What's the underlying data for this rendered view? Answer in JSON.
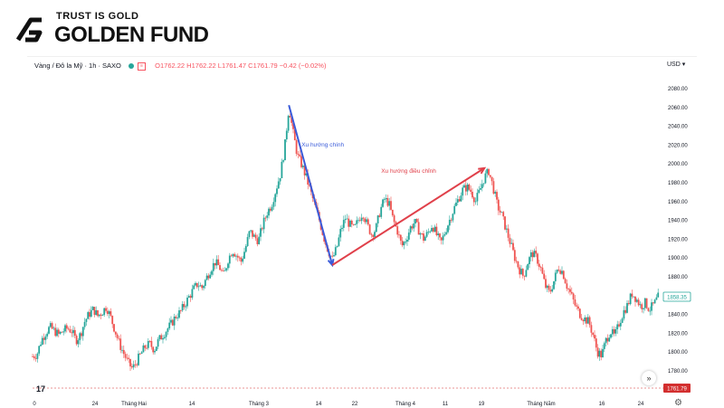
{
  "brand": {
    "tagline": "TRUST IS GOLD",
    "name": "GOLDEN FUND"
  },
  "legend": {
    "symbol": "Vàng / Đô la Mỹ · 1h · SAXO",
    "ohlc": "O1762.22 H1762.22 L1761.47 C1761.79 −0.42 (−0.02%)"
  },
  "currency_label": "USD",
  "colors": {
    "up": "#26a69a",
    "down": "#ef5350",
    "trend_down": "#3a5bd9",
    "trend_up": "#e0404a",
    "price_tag": "#d32f2f",
    "last_tag": "#26a69a"
  },
  "chart_data": {
    "type": "candlestick",
    "y_axis": {
      "ticks": [
        1780,
        1800,
        1820,
        1840,
        1860,
        1880,
        1900,
        1920,
        1940,
        1960,
        1980,
        2000,
        2020,
        2040,
        2060,
        2080
      ],
      "tick_labels": [
        "1780.00",
        "1800.00",
        "1820.00",
        "1840.00",
        "1860.00",
        "1880.00",
        "1900.00",
        "1920.00",
        "1940.00",
        "1960.00",
        "1980.00",
        "2000.00",
        "2020.00",
        "2040.00",
        "2060.00",
        "2080.00"
      ],
      "range": [
        1768,
        2092
      ]
    },
    "x_axis": {
      "tick_labels": [
        "0",
        "24",
        "Tháng Hai",
        "14",
        "Tháng 3",
        "14",
        "22",
        "Tháng 4",
        "11",
        "19",
        "Tháng Năm",
        "16",
        "24"
      ]
    },
    "price_path": [
      [
        0,
        1795
      ],
      [
        2,
        1797
      ],
      [
        4,
        1812
      ],
      [
        6,
        1820
      ],
      [
        8,
        1826
      ],
      [
        10,
        1822
      ],
      [
        12,
        1818
      ],
      [
        14,
        1822
      ],
      [
        16,
        1825
      ],
      [
        18,
        1822
      ],
      [
        20,
        1812
      ],
      [
        22,
        1818
      ],
      [
        24,
        1832
      ],
      [
        26,
        1840
      ],
      [
        28,
        1845
      ],
      [
        30,
        1838
      ],
      [
        32,
        1842
      ],
      [
        34,
        1848
      ],
      [
        36,
        1836
      ],
      [
        38,
        1822
      ],
      [
        40,
        1808
      ],
      [
        42,
        1798
      ],
      [
        44,
        1788
      ],
      [
        46,
        1782
      ],
      [
        48,
        1790
      ],
      [
        50,
        1798
      ],
      [
        52,
        1806
      ],
      [
        54,
        1808
      ],
      [
        56,
        1802
      ],
      [
        58,
        1812
      ],
      [
        60,
        1818
      ],
      [
        62,
        1824
      ],
      [
        64,
        1830
      ],
      [
        66,
        1838
      ],
      [
        68,
        1842
      ],
      [
        70,
        1850
      ],
      [
        72,
        1858
      ],
      [
        74,
        1866
      ],
      [
        76,
        1872
      ],
      [
        78,
        1868
      ],
      [
        80,
        1878
      ],
      [
        82,
        1888
      ],
      [
        84,
        1895
      ],
      [
        86,
        1890
      ],
      [
        88,
        1880
      ],
      [
        90,
        1898
      ],
      [
        92,
        1908
      ],
      [
        94,
        1902
      ],
      [
        96,
        1896
      ],
      [
        98,
        1910
      ],
      [
        100,
        1928
      ],
      [
        102,
        1922
      ],
      [
        104,
        1918
      ],
      [
        106,
        1935
      ],
      [
        108,
        1948
      ],
      [
        110,
        1956
      ],
      [
        112,
        1972
      ],
      [
        114,
        1988
      ],
      [
        116,
        2015
      ],
      [
        118,
        2060
      ],
      [
        120,
        2032
      ],
      [
        122,
        2008
      ],
      [
        124,
        1998
      ],
      [
        126,
        1985
      ],
      [
        128,
        1970
      ],
      [
        130,
        1955
      ],
      [
        132,
        1940
      ],
      [
        134,
        1922
      ],
      [
        136,
        1908
      ],
      [
        138,
        1898
      ],
      [
        140,
        1910
      ],
      [
        142,
        1930
      ],
      [
        144,
        1942
      ],
      [
        146,
        1935
      ],
      [
        148,
        1930
      ],
      [
        150,
        1940
      ],
      [
        152,
        1948
      ],
      [
        154,
        1935
      ],
      [
        156,
        1925
      ],
      [
        158,
        1930
      ],
      [
        160,
        1950
      ],
      [
        162,
        1962
      ],
      [
        164,
        1958
      ],
      [
        166,
        1940
      ],
      [
        168,
        1928
      ],
      [
        170,
        1912
      ],
      [
        172,
        1920
      ],
      [
        174,
        1932
      ],
      [
        176,
        1938
      ],
      [
        178,
        1928
      ],
      [
        180,
        1920
      ],
      [
        182,
        1926
      ],
      [
        184,
        1935
      ],
      [
        186,
        1924
      ],
      [
        188,
        1915
      ],
      [
        190,
        1928
      ],
      [
        192,
        1940
      ],
      [
        194,
        1952
      ],
      [
        196,
        1962
      ],
      [
        198,
        1972
      ],
      [
        200,
        1975
      ],
      [
        202,
        1970
      ],
      [
        204,
        1960
      ],
      [
        206,
        1972
      ],
      [
        208,
        1985
      ],
      [
        210,
        1992
      ],
      [
        212,
        1975
      ],
      [
        214,
        1955
      ],
      [
        216,
        1945
      ],
      [
        218,
        1930
      ],
      [
        220,
        1915
      ],
      [
        222,
        1900
      ],
      [
        224,
        1888
      ],
      [
        226,
        1880
      ],
      [
        228,
        1895
      ],
      [
        230,
        1905
      ],
      [
        232,
        1900
      ],
      [
        234,
        1888
      ],
      [
        236,
        1870
      ],
      [
        238,
        1862
      ],
      [
        240,
        1875
      ],
      [
        242,
        1890
      ],
      [
        244,
        1885
      ],
      [
        246,
        1870
      ],
      [
        248,
        1860
      ],
      [
        250,
        1848
      ],
      [
        252,
        1840
      ],
      [
        254,
        1835
      ],
      [
        256,
        1832
      ],
      [
        258,
        1818
      ],
      [
        260,
        1800
      ],
      [
        262,
        1796
      ],
      [
        264,
        1812
      ],
      [
        266,
        1822
      ],
      [
        268,
        1816
      ],
      [
        270,
        1830
      ],
      [
        272,
        1842
      ],
      [
        274,
        1850
      ],
      [
        276,
        1862
      ],
      [
        278,
        1856
      ],
      [
        280,
        1848
      ],
      [
        282,
        1852
      ],
      [
        284,
        1845
      ],
      [
        286,
        1850
      ],
      [
        288,
        1858
      ]
    ],
    "annotations": [
      {
        "label": "Xu hướng chính",
        "color": "#3a5bd9",
        "from": [
          118,
          2062
        ],
        "to": [
          138,
          1892
        ]
      },
      {
        "label": "Xu hướng điều chỉnh",
        "color": "#e0404a",
        "from": [
          138,
          1892
        ],
        "to": [
          208,
          1995
        ]
      }
    ],
    "last_price": {
      "value": 1858.35,
      "label": "1858.35"
    },
    "reference_price": {
      "value": 1761.79,
      "label": "1761.79"
    }
  },
  "controls": {
    "jump_label": "»",
    "settings_label": "⚙",
    "tv_mark": "17"
  }
}
